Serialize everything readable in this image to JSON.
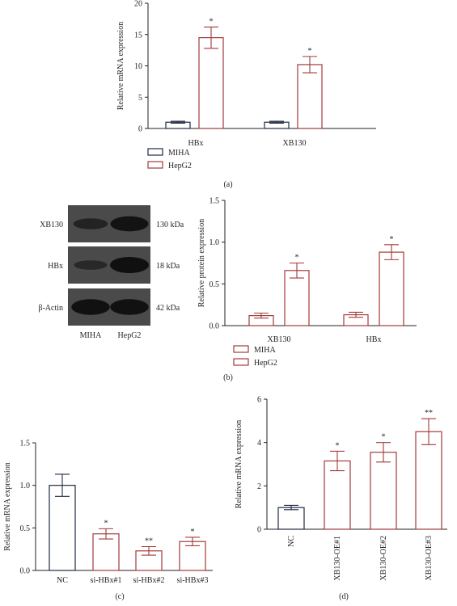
{
  "colors": {
    "outline": "#231f20",
    "hepg2": "#a33a3a",
    "miha": "#1f2a44",
    "band_bg": "#4a4a4a",
    "band": "#101010"
  },
  "chart_data": [
    {
      "id": "a",
      "type": "bar",
      "panel_label": "(a)",
      "ylabel": "Relative mRNA expression",
      "ylim": [
        0,
        20
      ],
      "yticks": [
        "0",
        "5",
        "10",
        "15",
        "20"
      ],
      "categories": [
        "HBx",
        "XB130"
      ],
      "series": [
        {
          "name": "MIHA",
          "color": "#1f2a44",
          "values": [
            1.0,
            1.0
          ],
          "errors": [
            0.15,
            0.15
          ],
          "sig": [
            "",
            ""
          ]
        },
        {
          "name": "HepG2",
          "color": "#a33a3a",
          "values": [
            14.5,
            10.2
          ],
          "errors": [
            1.7,
            1.3
          ],
          "sig": [
            "*",
            "*"
          ]
        }
      ],
      "legend": [
        "MIHA",
        "HepG2"
      ],
      "legend_position": "bottom-left"
    },
    {
      "id": "b",
      "type": "bar",
      "panel_label": "(b)",
      "ylabel": "Relative protein expression",
      "ylim": [
        0,
        1.5
      ],
      "yticks": [
        "0.0",
        "0.5",
        "1.0",
        "1.5"
      ],
      "categories": [
        "XB130",
        "HBx"
      ],
      "series": [
        {
          "name": "MIHA",
          "color": "#a33a3a",
          "values": [
            0.12,
            0.13
          ],
          "errors": [
            0.03,
            0.03
          ],
          "sig": [
            "",
            ""
          ]
        },
        {
          "name": "HepG2",
          "color": "#a33a3a",
          "values": [
            0.66,
            0.88
          ],
          "errors": [
            0.09,
            0.09
          ],
          "sig": [
            "*",
            "*"
          ]
        }
      ],
      "legend": [
        "MIHA",
        "HepG2"
      ],
      "legend_position": "bottom-left"
    },
    {
      "id": "c",
      "type": "bar",
      "panel_label": "(c)",
      "ylabel": "Relative mRNA expression",
      "ylim": [
        0,
        1.5
      ],
      "yticks": [
        "0.0",
        "0.5",
        "1.0",
        "1.5"
      ],
      "categories": [
        "NC",
        "si-HBx#1",
        "si-HBx#2",
        "si-HBx#3"
      ],
      "values": [
        1.0,
        0.43,
        0.23,
        0.34
      ],
      "errors": [
        0.13,
        0.06,
        0.05,
        0.05
      ],
      "sig": [
        "",
        "*",
        "**",
        "*"
      ],
      "colors": [
        "#1f2a44",
        "#a33a3a",
        "#a33a3a",
        "#a33a3a"
      ]
    },
    {
      "id": "d",
      "type": "bar",
      "panel_label": "(d)",
      "ylabel": "Relative mRNA expression",
      "ylim": [
        0,
        6
      ],
      "yticks": [
        "0",
        "2",
        "4",
        "6"
      ],
      "categories": [
        "NC",
        "XB130-OE#1",
        "XB130-OE#2",
        "XB130-OE#3"
      ],
      "values": [
        1.0,
        3.15,
        3.55,
        4.5
      ],
      "errors": [
        0.1,
        0.45,
        0.45,
        0.6
      ],
      "sig": [
        "",
        "*",
        "*",
        "**"
      ],
      "colors": [
        "#1f2a44",
        "#a33a3a",
        "#a33a3a",
        "#a33a3a"
      ]
    }
  ],
  "western_blot": {
    "rows": [
      "XB130",
      "HBx",
      "β-Actin"
    ],
    "sizes": [
      "130 kDa",
      "18 kDa",
      "42 kDa"
    ],
    "lanes": [
      "MIHA",
      "HepG2"
    ],
    "intensity": [
      [
        0.45,
        0.9
      ],
      [
        0.3,
        1.0
      ],
      [
        0.95,
        0.95
      ]
    ]
  }
}
